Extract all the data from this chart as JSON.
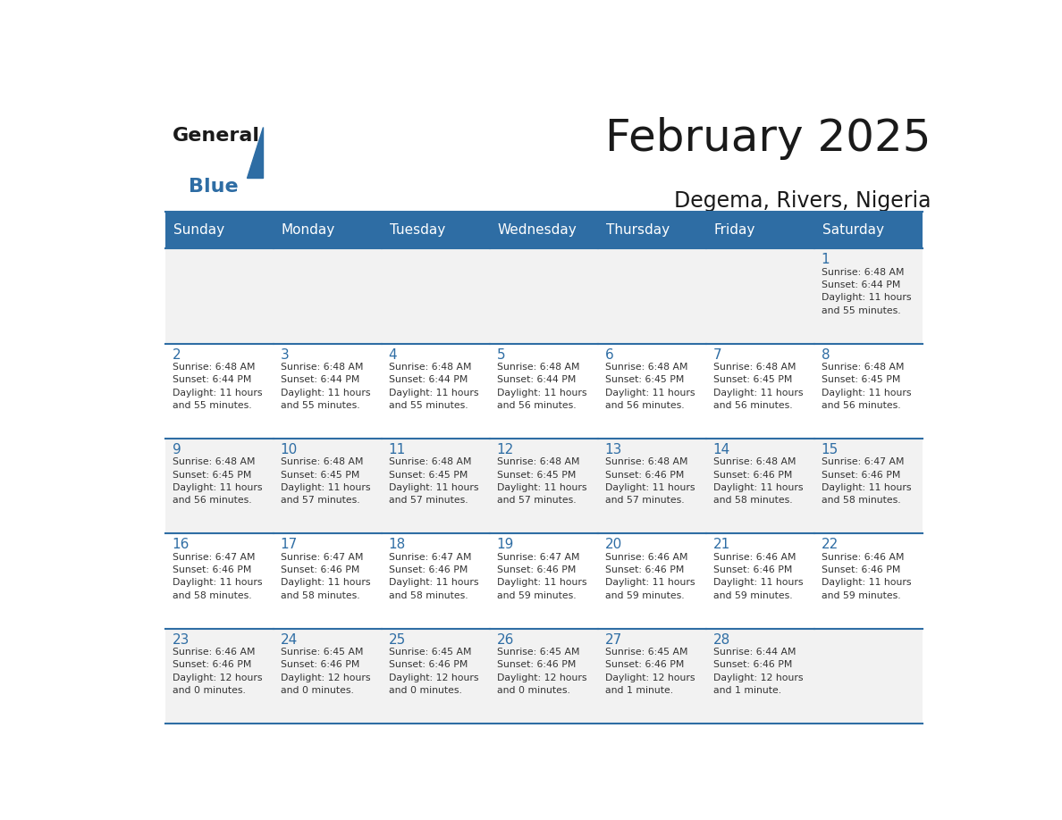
{
  "title": "February 2025",
  "subtitle": "Degema, Rivers, Nigeria",
  "header_bg": "#2E6DA4",
  "header_text_color": "#FFFFFF",
  "border_color": "#2E6DA4",
  "text_color": "#333333",
  "day_number_color": "#2E6DA4",
  "days_of_week": [
    "Sunday",
    "Monday",
    "Tuesday",
    "Wednesday",
    "Thursday",
    "Friday",
    "Saturday"
  ],
  "weeks": [
    [
      {
        "day": "",
        "info": ""
      },
      {
        "day": "",
        "info": ""
      },
      {
        "day": "",
        "info": ""
      },
      {
        "day": "",
        "info": ""
      },
      {
        "day": "",
        "info": ""
      },
      {
        "day": "",
        "info": ""
      },
      {
        "day": "1",
        "info": "Sunrise: 6:48 AM\nSunset: 6:44 PM\nDaylight: 11 hours\nand 55 minutes."
      }
    ],
    [
      {
        "day": "2",
        "info": "Sunrise: 6:48 AM\nSunset: 6:44 PM\nDaylight: 11 hours\nand 55 minutes."
      },
      {
        "day": "3",
        "info": "Sunrise: 6:48 AM\nSunset: 6:44 PM\nDaylight: 11 hours\nand 55 minutes."
      },
      {
        "day": "4",
        "info": "Sunrise: 6:48 AM\nSunset: 6:44 PM\nDaylight: 11 hours\nand 55 minutes."
      },
      {
        "day": "5",
        "info": "Sunrise: 6:48 AM\nSunset: 6:44 PM\nDaylight: 11 hours\nand 56 minutes."
      },
      {
        "day": "6",
        "info": "Sunrise: 6:48 AM\nSunset: 6:45 PM\nDaylight: 11 hours\nand 56 minutes."
      },
      {
        "day": "7",
        "info": "Sunrise: 6:48 AM\nSunset: 6:45 PM\nDaylight: 11 hours\nand 56 minutes."
      },
      {
        "day": "8",
        "info": "Sunrise: 6:48 AM\nSunset: 6:45 PM\nDaylight: 11 hours\nand 56 minutes."
      }
    ],
    [
      {
        "day": "9",
        "info": "Sunrise: 6:48 AM\nSunset: 6:45 PM\nDaylight: 11 hours\nand 56 minutes."
      },
      {
        "day": "10",
        "info": "Sunrise: 6:48 AM\nSunset: 6:45 PM\nDaylight: 11 hours\nand 57 minutes."
      },
      {
        "day": "11",
        "info": "Sunrise: 6:48 AM\nSunset: 6:45 PM\nDaylight: 11 hours\nand 57 minutes."
      },
      {
        "day": "12",
        "info": "Sunrise: 6:48 AM\nSunset: 6:45 PM\nDaylight: 11 hours\nand 57 minutes."
      },
      {
        "day": "13",
        "info": "Sunrise: 6:48 AM\nSunset: 6:46 PM\nDaylight: 11 hours\nand 57 minutes."
      },
      {
        "day": "14",
        "info": "Sunrise: 6:48 AM\nSunset: 6:46 PM\nDaylight: 11 hours\nand 58 minutes."
      },
      {
        "day": "15",
        "info": "Sunrise: 6:47 AM\nSunset: 6:46 PM\nDaylight: 11 hours\nand 58 minutes."
      }
    ],
    [
      {
        "day": "16",
        "info": "Sunrise: 6:47 AM\nSunset: 6:46 PM\nDaylight: 11 hours\nand 58 minutes."
      },
      {
        "day": "17",
        "info": "Sunrise: 6:47 AM\nSunset: 6:46 PM\nDaylight: 11 hours\nand 58 minutes."
      },
      {
        "day": "18",
        "info": "Sunrise: 6:47 AM\nSunset: 6:46 PM\nDaylight: 11 hours\nand 58 minutes."
      },
      {
        "day": "19",
        "info": "Sunrise: 6:47 AM\nSunset: 6:46 PM\nDaylight: 11 hours\nand 59 minutes."
      },
      {
        "day": "20",
        "info": "Sunrise: 6:46 AM\nSunset: 6:46 PM\nDaylight: 11 hours\nand 59 minutes."
      },
      {
        "day": "21",
        "info": "Sunrise: 6:46 AM\nSunset: 6:46 PM\nDaylight: 11 hours\nand 59 minutes."
      },
      {
        "day": "22",
        "info": "Sunrise: 6:46 AM\nSunset: 6:46 PM\nDaylight: 11 hours\nand 59 minutes."
      }
    ],
    [
      {
        "day": "23",
        "info": "Sunrise: 6:46 AM\nSunset: 6:46 PM\nDaylight: 12 hours\nand 0 minutes."
      },
      {
        "day": "24",
        "info": "Sunrise: 6:45 AM\nSunset: 6:46 PM\nDaylight: 12 hours\nand 0 minutes."
      },
      {
        "day": "25",
        "info": "Sunrise: 6:45 AM\nSunset: 6:46 PM\nDaylight: 12 hours\nand 0 minutes."
      },
      {
        "day": "26",
        "info": "Sunrise: 6:45 AM\nSunset: 6:46 PM\nDaylight: 12 hours\nand 0 minutes."
      },
      {
        "day": "27",
        "info": "Sunrise: 6:45 AM\nSunset: 6:46 PM\nDaylight: 12 hours\nand 1 minute."
      },
      {
        "day": "28",
        "info": "Sunrise: 6:44 AM\nSunset: 6:46 PM\nDaylight: 12 hours\nand 1 minute."
      },
      {
        "day": "",
        "info": ""
      }
    ]
  ]
}
